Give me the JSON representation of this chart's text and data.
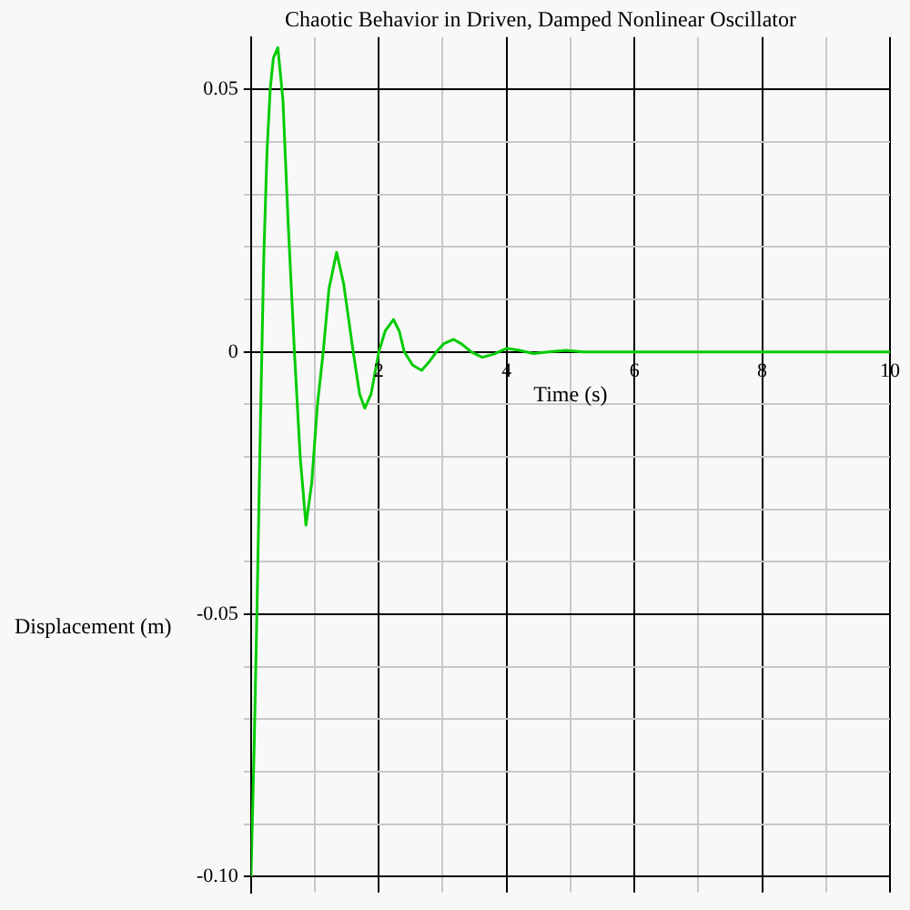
{
  "chart_data": {
    "type": "line",
    "title": "Chaotic Behavior in Driven, Damped Nonlinear Oscillator",
    "xlabel": "Time (s)",
    "ylabel": "Displacement (m)",
    "x": [
      0,
      0.05,
      0.1,
      0.15,
      0.2,
      0.25,
      0.3,
      0.35,
      0.42,
      0.5,
      0.58,
      0.68,
      0.77,
      0.86,
      0.95,
      1.04,
      1.13,
      1.22,
      1.34,
      1.45,
      1.6,
      1.7,
      1.78,
      1.88,
      2.0,
      2.1,
      2.23,
      2.32,
      2.4,
      2.53,
      2.67,
      2.78,
      2.9,
      3.02,
      3.17,
      3.3,
      3.45,
      3.62,
      3.8,
      4.0,
      4.2,
      4.42,
      4.65,
      4.93,
      5.2,
      5.6,
      6,
      7,
      8,
      9,
      10
    ],
    "series": [
      {
        "color": "#00cc00",
        "values": [
          -0.1,
          -0.075,
          -0.045,
          -0.012,
          0.018,
          0.038,
          0.05,
          0.056,
          0.058,
          0.048,
          0.025,
          0,
          -0.02,
          -0.033,
          -0.025,
          -0.01,
          0,
          0.012,
          0.019,
          0.013,
          0,
          -0.008,
          -0.0107,
          -0.008,
          0,
          0.004,
          0.0062,
          0.004,
          0,
          -0.0025,
          -0.0035,
          -0.002,
          0,
          0.0016,
          0.0024,
          0.0015,
          0,
          -0.001,
          -0.0004,
          0.0007,
          0.0003,
          -0.0003,
          0,
          0.0003,
          0,
          0,
          0,
          0,
          0,
          0,
          0
        ]
      }
    ],
    "xlim": [
      0,
      10
    ],
    "xticks": [
      {
        "value": 0,
        "label": null
      },
      {
        "value": 1,
        "label": null
      },
      2,
      {
        "value": 3,
        "label": null
      },
      4,
      {
        "value": 5,
        "label": null
      },
      6,
      {
        "value": 7,
        "label": null
      },
      8,
      {
        "value": 9,
        "label": null
      },
      10
    ],
    "ylim": [
      -0.103,
      0.06
    ],
    "yticks": [
      {
        "value": -0.1,
        "label": "-0.10"
      },
      {
        "value": -0.09,
        "label": null
      },
      {
        "value": -0.08,
        "label": null
      },
      {
        "value": -0.07,
        "label": null
      },
      {
        "value": -0.06,
        "label": null
      },
      {
        "value": -0.05,
        "label": "-0.05"
      },
      {
        "value": -0.04,
        "label": null
      },
      {
        "value": -0.03,
        "label": null
      },
      {
        "value": -0.02,
        "label": null
      },
      {
        "value": -0.01,
        "label": null
      },
      0,
      {
        "value": 0.01,
        "label": null
      },
      {
        "value": 0.02,
        "label": null
      },
      {
        "value": 0.03,
        "label": null
      },
      {
        "value": 0.04,
        "label": null
      },
      0.05
    ],
    "grid": true,
    "legend": false,
    "marker": "none",
    "line_style": "solid"
  }
}
